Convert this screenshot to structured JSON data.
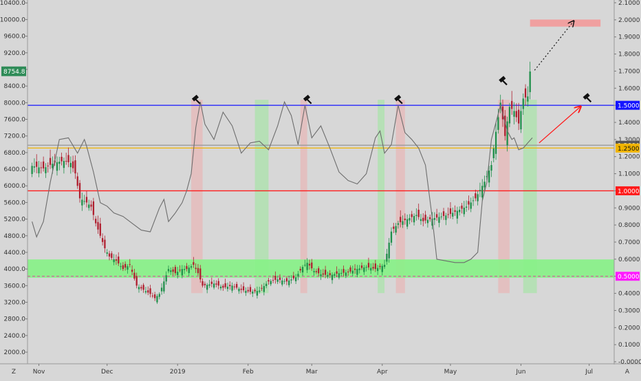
{
  "chart_data": {
    "type": "line",
    "left_axis": {
      "ticks": [
        "10400.0",
        "10000.0",
        "9600.0",
        "9200.0",
        "8800.0",
        "8400.0",
        "8000.0",
        "7600.0",
        "7200.0",
        "6800.0",
        "6400.0",
        "6000.0",
        "5600.0",
        "5200.0",
        "4800.0",
        "4400.0",
        "4000.0",
        "3600.0",
        "3200.0",
        "2800.0",
        "2400.0",
        "2000.0"
      ],
      "range": [
        1720,
        10470
      ],
      "price_badge": "8754.8"
    },
    "right_axis": {
      "ticks": [
        "2.1000",
        "2.0000",
        "1.9000",
        "1.8000",
        "1.7000",
        "1.6000",
        "1.5000",
        "1.4000",
        "1.3000",
        "1.2000",
        "1.1000",
        "1.0000",
        "0.9000",
        "0.8000",
        "0.7000",
        "0.6000",
        "0.5000",
        "0.4000",
        "0.3000",
        "0.2000",
        "0.1000",
        "-0.0000"
      ],
      "range": [
        -0.012,
        2.116
      ],
      "badges": [
        {
          "label": "1.5000",
          "value": 1.5,
          "color": "#1414ff"
        },
        {
          "label": "1.2664",
          "value": 1.2664,
          "color": "#555555"
        },
        {
          "label": "1.2500",
          "value": 1.25,
          "color": "#f0b400"
        },
        {
          "label": "1.0000",
          "value": 1.0,
          "color": "#ff1a1a"
        },
        {
          "label": "0.5000",
          "value": 0.5,
          "color": "#ff1aff"
        }
      ]
    },
    "x_axis": {
      "month_labels": [
        "Nov",
        "Dec",
        "2019",
        "Feb",
        "Mar",
        "Apr",
        "May",
        "Jun",
        "Jul"
      ],
      "month_day_index": [
        3,
        33,
        64,
        95,
        123,
        154,
        184,
        215,
        245
      ],
      "day_range": [
        -2,
        256
      ],
      "corner_left": "Z",
      "corner_right": "A"
    },
    "levels": [
      {
        "value": 1.5,
        "color": "#1414ff"
      },
      {
        "value": 1.2664,
        "color": "#9a9a9a"
      },
      {
        "value": 1.25,
        "color": "#f0b400"
      },
      {
        "value": 1.0,
        "color": "#ff1a1a"
      },
      {
        "value": 0.5,
        "color": "#e040a0",
        "dashed": true
      }
    ],
    "support_zone": {
      "from": 3790,
      "to": 4230,
      "color": "#86f286"
    },
    "target_zone": {
      "day_from": 219,
      "day_to": 250,
      "price_from": 9830,
      "price_to": 10000,
      "color": "#f0a0a0"
    },
    "bands": [
      {
        "day_from": 70,
        "day_to": 75,
        "color": "red"
      },
      {
        "day_from": 98,
        "day_to": 104,
        "color": "green"
      },
      {
        "day_from": 118,
        "day_to": 121,
        "color": "red"
      },
      {
        "day_from": 152,
        "day_to": 155,
        "color": "green"
      },
      {
        "day_from": 160,
        "day_to": 164,
        "color": "red"
      },
      {
        "day_from": 205,
        "day_to": 210,
        "color": "red"
      },
      {
        "day_from": 216,
        "day_to": 222,
        "color": "green"
      }
    ],
    "hammers": [
      {
        "day": 72,
        "value": 1.51
      },
      {
        "day": 121,
        "value": 1.51
      },
      {
        "day": 161,
        "value": 1.51
      },
      {
        "day": 207,
        "value": 1.62
      },
      {
        "day": 244,
        "value": 1.52
      }
    ],
    "price_series": {
      "name": "price",
      "points": [
        [
          0,
          6480
        ],
        [
          5,
          6420
        ],
        [
          10,
          6560
        ],
        [
          14,
          6600
        ],
        [
          17,
          6550
        ],
        [
          19,
          6300
        ],
        [
          21,
          5700
        ],
        [
          24,
          5600
        ],
        [
          26,
          5500
        ],
        [
          28,
          5100
        ],
        [
          30,
          4800
        ],
        [
          32,
          4500
        ],
        [
          34,
          4300
        ],
        [
          37,
          4200
        ],
        [
          40,
          4000
        ],
        [
          43,
          4100
        ],
        [
          46,
          3600
        ],
        [
          49,
          3500
        ],
        [
          52,
          3400
        ],
        [
          54,
          3300
        ],
        [
          56,
          3400
        ],
        [
          58,
          3700
        ],
        [
          60,
          4000
        ],
        [
          63,
          3900
        ],
        [
          66,
          4000
        ],
        [
          68,
          4000
        ],
        [
          71,
          4100
        ],
        [
          73,
          3900
        ],
        [
          75,
          3600
        ],
        [
          80,
          3650
        ],
        [
          84,
          3550
        ],
        [
          88,
          3600
        ],
        [
          92,
          3500
        ],
        [
          96,
          3450
        ],
        [
          100,
          3480
        ],
        [
          104,
          3700
        ],
        [
          108,
          3750
        ],
        [
          112,
          3700
        ],
        [
          116,
          3800
        ],
        [
          119,
          4050
        ],
        [
          121,
          4150
        ],
        [
          124,
          3950
        ],
        [
          127,
          3870
        ],
        [
          131,
          3850
        ],
        [
          135,
          3900
        ],
        [
          139,
          3920
        ],
        [
          143,
          4000
        ],
        [
          147,
          4050
        ],
        [
          151,
          4000
        ],
        [
          155,
          4100
        ],
        [
          158,
          4900
        ],
        [
          161,
          5100
        ],
        [
          165,
          5200
        ],
        [
          169,
          5300
        ],
        [
          172,
          5150
        ],
        [
          175,
          5200
        ],
        [
          179,
          5250
        ],
        [
          183,
          5300
        ],
        [
          187,
          5400
        ],
        [
          191,
          5500
        ],
        [
          195,
          5700
        ],
        [
          199,
          6100
        ],
        [
          202,
          6500
        ],
        [
          204,
          7300
        ],
        [
          206,
          8000
        ],
        [
          208,
          7200
        ],
        [
          210,
          7900
        ],
        [
          212,
          7800
        ],
        [
          214,
          7500
        ],
        [
          216,
          8100
        ],
        [
          218,
          8150
        ],
        [
          219,
          8750
        ]
      ]
    },
    "oscillator_series": {
      "name": "ratio",
      "points": [
        [
          0,
          0.82
        ],
        [
          2,
          0.73
        ],
        [
          5,
          0.82
        ],
        [
          8,
          1.05
        ],
        [
          12,
          1.3
        ],
        [
          16,
          1.31
        ],
        [
          20,
          1.22
        ],
        [
          23,
          1.3
        ],
        [
          24,
          1.26
        ],
        [
          27,
          1.11
        ],
        [
          30,
          0.93
        ],
        [
          33,
          0.91
        ],
        [
          36,
          0.87
        ],
        [
          40,
          0.85
        ],
        [
          44,
          0.81
        ],
        [
          48,
          0.77
        ],
        [
          52,
          0.76
        ],
        [
          56,
          0.9
        ],
        [
          58,
          0.95
        ],
        [
          60,
          0.82
        ],
        [
          63,
          0.87
        ],
        [
          66,
          0.93
        ],
        [
          68,
          1.0
        ],
        [
          70,
          1.1
        ],
        [
          72,
          1.37
        ],
        [
          74,
          1.52
        ],
        [
          76,
          1.39
        ],
        [
          80,
          1.3
        ],
        [
          84,
          1.46
        ],
        [
          88,
          1.38
        ],
        [
          92,
          1.22
        ],
        [
          96,
          1.28
        ],
        [
          100,
          1.29
        ],
        [
          104,
          1.24
        ],
        [
          108,
          1.38
        ],
        [
          111,
          1.52
        ],
        [
          114,
          1.44
        ],
        [
          117,
          1.27
        ],
        [
          120,
          1.5
        ],
        [
          123,
          1.31
        ],
        [
          127,
          1.38
        ],
        [
          131,
          1.25
        ],
        [
          135,
          1.11
        ],
        [
          139,
          1.06
        ],
        [
          143,
          1.04
        ],
        [
          147,
          1.1
        ],
        [
          151,
          1.31
        ],
        [
          153,
          1.35
        ],
        [
          155,
          1.22
        ],
        [
          158,
          1.27
        ],
        [
          161,
          1.5
        ],
        [
          164,
          1.34
        ],
        [
          167,
          1.3
        ],
        [
          170,
          1.25
        ],
        [
          173,
          1.15
        ],
        [
          176,
          0.84
        ],
        [
          178,
          0.6
        ],
        [
          182,
          0.59
        ],
        [
          186,
          0.58
        ],
        [
          190,
          0.58
        ],
        [
          193,
          0.6
        ],
        [
          196,
          0.64
        ],
        [
          198,
          0.94
        ],
        [
          200,
          1.05
        ],
        [
          202,
          1.3
        ],
        [
          204,
          1.4
        ],
        [
          206,
          1.5
        ],
        [
          209,
          1.35
        ],
        [
          211,
          1.3
        ],
        [
          212,
          1.31
        ],
        [
          214,
          1.24
        ],
        [
          216,
          1.25
        ],
        [
          218,
          1.28
        ],
        [
          220,
          1.31
        ]
      ]
    },
    "annotations": {
      "red_arrow": {
        "from_day": 223,
        "from_value": 1.28,
        "to_day": 241,
        "to_value": 1.49,
        "color": "#ff1a1a"
      },
      "dotted_arrow": {
        "from_day": 221,
        "from_price": 8780,
        "to_day": 238,
        "to_price": 9950,
        "color": "#111111"
      }
    }
  }
}
